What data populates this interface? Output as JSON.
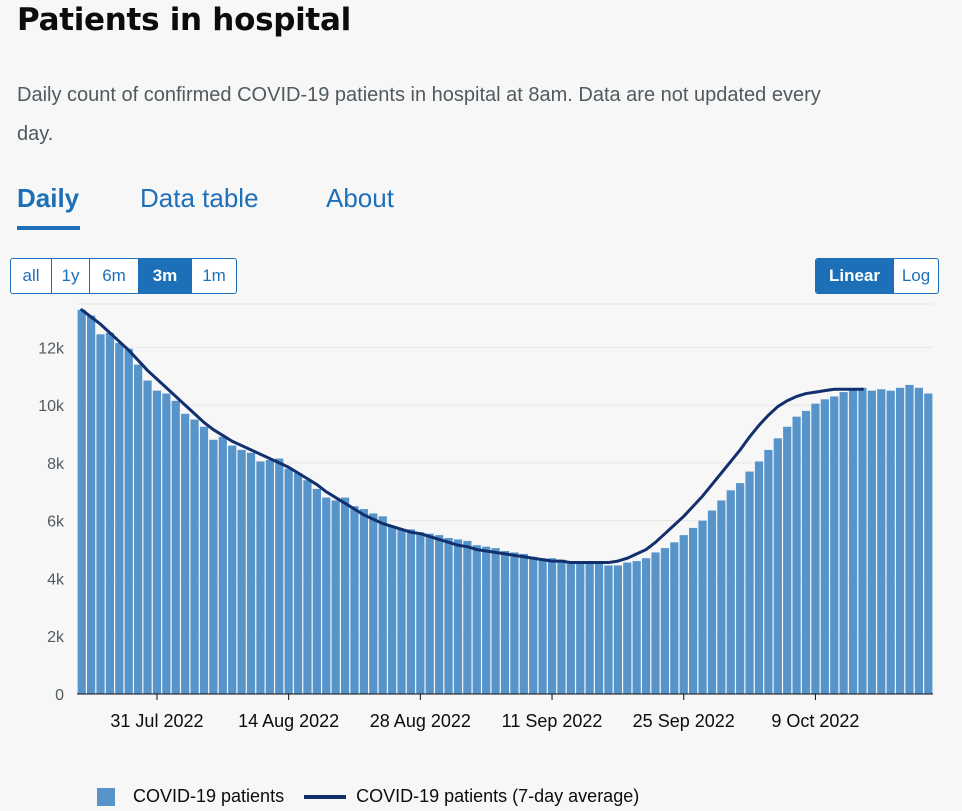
{
  "page": {
    "title": "Patients in hospital",
    "description": "Daily count of confirmed COVID-19 patients in hospital at 8am. Data are not updated every day."
  },
  "tabs": [
    {
      "label": "Daily",
      "active": true
    },
    {
      "label": "Data table",
      "active": false
    },
    {
      "label": "About",
      "active": false
    }
  ],
  "time_range": {
    "options": [
      "all",
      "1y",
      "6m",
      "3m",
      "1m"
    ],
    "selected": "3m"
  },
  "scale": {
    "options": [
      "Linear",
      "Log"
    ],
    "selected": "Linear"
  },
  "colors": {
    "bar": "#5694ca",
    "average_line": "#12306e",
    "accent": "#1d70b8",
    "grid": "#e6e6e6"
  },
  "chart_data": {
    "type": "bar",
    "x_start_date": "2022-07-23",
    "x_ticks": [
      "31 Jul 2022",
      "14 Aug 2022",
      "28 Aug 2022",
      "11 Sep 2022",
      "25 Sep 2022",
      "9 Oct 2022"
    ],
    "y_ticks": [
      "0",
      "2k",
      "4k",
      "6k",
      "8k",
      "10k",
      "12k"
    ],
    "ylim": [
      0,
      13500
    ],
    "grid": true,
    "legend_position": "bottom",
    "series": [
      {
        "name": "COVID-19 patients",
        "kind": "bar",
        "values": [
          13300,
          13100,
          12450,
          12500,
          12150,
          11950,
          11400,
          10850,
          10500,
          10400,
          10150,
          9700,
          9500,
          9250,
          8800,
          8900,
          8600,
          8450,
          8350,
          8050,
          8100,
          8150,
          7800,
          7650,
          7400,
          7100,
          6800,
          6700,
          6800,
          6500,
          6400,
          6250,
          6150,
          5800,
          5700,
          5700,
          5600,
          5550,
          5500,
          5400,
          5350,
          5300,
          5150,
          5100,
          5050,
          4950,
          4900,
          4850,
          4750,
          4700,
          4700,
          4650,
          4600,
          4550,
          4550,
          4500,
          4450,
          4450,
          4550,
          4600,
          4700,
          4900,
          5050,
          5250,
          5500,
          5750,
          6000,
          6350,
          6700,
          7050,
          7300,
          7700,
          8050,
          8450,
          8850,
          9250,
          9600,
          9800,
          10050,
          10200,
          10300,
          10450,
          10550,
          10600,
          10500,
          10550,
          10500,
          10600,
          10700,
          10600,
          10400
        ]
      },
      {
        "name": "COVID-19 patients (7-day average)",
        "kind": "line",
        "values": [
          13300,
          13050,
          12800,
          12500,
          12200,
          11900,
          11550,
          11200,
          10900,
          10600,
          10300,
          10000,
          9700,
          9400,
          9150,
          8950,
          8750,
          8600,
          8450,
          8300,
          8150,
          8000,
          7850,
          7650,
          7450,
          7250,
          7000,
          6800,
          6600,
          6400,
          6200,
          6050,
          5900,
          5800,
          5700,
          5600,
          5550,
          5450,
          5350,
          5250,
          5150,
          5100,
          5000,
          4950,
          4900,
          4850,
          4800,
          4750,
          4700,
          4650,
          4600,
          4600,
          4550,
          4550,
          4550,
          4550,
          4550,
          4600,
          4700,
          4850,
          5000,
          5250,
          5550,
          5850,
          6150,
          6500,
          6850,
          7250,
          7650,
          8050,
          8450,
          8900,
          9300,
          9650,
          9950,
          10150,
          10300,
          10400,
          10450,
          10500,
          10550,
          10550,
          10550,
          10550
        ]
      }
    ]
  }
}
